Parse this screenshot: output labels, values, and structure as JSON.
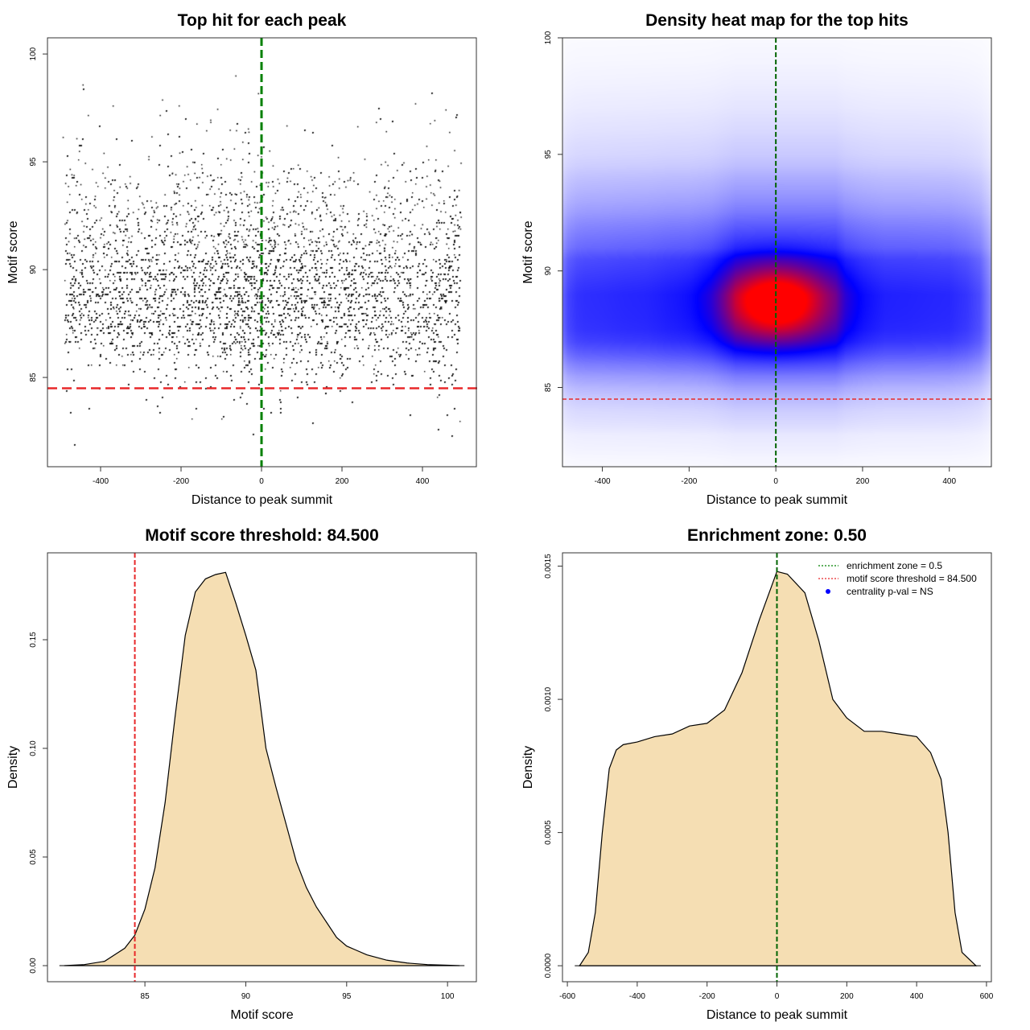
{
  "chart_data": [
    {
      "type": "scatter",
      "title": "Top hit for each peak",
      "xlabel": "Distance to peak summit",
      "ylabel": "Motif score",
      "xlim": [
        -532,
        534
      ],
      "ylim": [
        80.86,
        100.75
      ],
      "xticks": [
        -400,
        -200,
        0,
        200,
        400
      ],
      "yticks": [
        85,
        90,
        95,
        100
      ],
      "point_color": "#000000",
      "points_note": "",
      "hlines": [
        {
          "y": 84.5,
          "color": "#e8282a",
          "style": "dashed"
        }
      ],
      "vlines": [
        {
          "x": 0,
          "color": "#008000",
          "style": "dashed"
        }
      ]
    },
    {
      "type": "heatmap",
      "title": "Density heat map for the top hits",
      "xlabel": "Distance to peak summit",
      "ylabel": "Motif score",
      "xlim": [
        -492,
        497
      ],
      "ylim": [
        81.6,
        100
      ],
      "xticks": [
        -400,
        -200,
        0,
        200,
        400
      ],
      "yticks": [
        85,
        90,
        95,
        100
      ],
      "colors": [
        "#ffffff",
        "#0000ff",
        "#ff0000"
      ],
      "hlines": [
        {
          "y": 84.5,
          "color": "#e8282a",
          "style": "dashed"
        }
      ],
      "vlines": [
        {
          "x": 0,
          "color": "#006400",
          "style": "dashed"
        }
      ]
    },
    {
      "type": "area",
      "title": "Motif score threshold: 84.500",
      "xlabel": "Motif score",
      "ylabel": "Density",
      "xlim": [
        80.17,
        101.43
      ],
      "ylim": [
        -0.0074,
        0.19
      ],
      "xticks": [
        85,
        90,
        95,
        100
      ],
      "yticks": [
        "0.00",
        "0.05",
        "0.10",
        "0.15"
      ],
      "fill": "#f5deb3",
      "x": [
        81,
        82,
        83,
        83.5,
        84,
        84.5,
        85,
        85.5,
        86,
        86.5,
        87,
        87.5,
        88,
        88.5,
        89,
        89.5,
        90,
        90.5,
        91,
        91.5,
        92,
        92.5,
        93,
        93.5,
        94,
        94.5,
        95,
        95.5,
        96,
        97,
        98,
        99,
        100,
        100.6
      ],
      "y": [
        0,
        0.0005,
        0.002,
        0.005,
        0.008,
        0.014,
        0.026,
        0.045,
        0.075,
        0.115,
        0.152,
        0.172,
        0.178,
        0.18,
        0.181,
        0.167,
        0.152,
        0.136,
        0.1,
        0.082,
        0.065,
        0.048,
        0.036,
        0.027,
        0.02,
        0.013,
        0.009,
        0.007,
        0.005,
        0.0025,
        0.0012,
        0.0005,
        0.0002,
        0
      ],
      "vlines": [
        {
          "x": 84.5,
          "color": "#e8282a",
          "style": "dashed"
        }
      ]
    },
    {
      "type": "area",
      "title": "Enrichment zone: 0.50",
      "xlabel": "Distance to peak summit",
      "ylabel": "Density",
      "xlim": [
        -614,
        614
      ],
      "ylim": [
        -6e-05,
        0.00155
      ],
      "xticks": [
        -600,
        -400,
        -200,
        0,
        200,
        400,
        600
      ],
      "yticks": [
        "0.0000",
        "0.0005",
        "0.0010",
        "0.0015"
      ],
      "fill": "#f5deb3",
      "x": [
        -565,
        -540,
        -520,
        -500,
        -480,
        -460,
        -440,
        -400,
        -350,
        -300,
        -250,
        -200,
        -150,
        -100,
        -50,
        0,
        30,
        80,
        120,
        160,
        200,
        250,
        300,
        350,
        400,
        440,
        470,
        490,
        510,
        530,
        570
      ],
      "y": [
        0,
        5e-05,
        0.0002,
        0.0005,
        0.00074,
        0.00081,
        0.00083,
        0.00084,
        0.00086,
        0.00087,
        0.0009,
        0.00091,
        0.00096,
        0.0011,
        0.0013,
        0.00148,
        0.00147,
        0.0014,
        0.00122,
        0.001,
        0.00093,
        0.00088,
        0.00088,
        0.00087,
        0.00086,
        0.0008,
        0.0007,
        0.0005,
        0.0002,
        5e-05,
        0
      ],
      "vlines": [
        {
          "x": 0,
          "color": "#006400",
          "style": "dashed"
        }
      ],
      "legend": {
        "placement": "top-right",
        "entries": [
          {
            "label": "enrichment zone = 0.5",
            "color": "#008000",
            "style": "dotted-line"
          },
          {
            "label": "motif score threshold = 84.500",
            "color": "#e8282a",
            "style": "dotted-line"
          },
          {
            "label": "centrality p-val = NS",
            "color": "#0000ff",
            "style": "point"
          }
        ]
      }
    }
  ]
}
